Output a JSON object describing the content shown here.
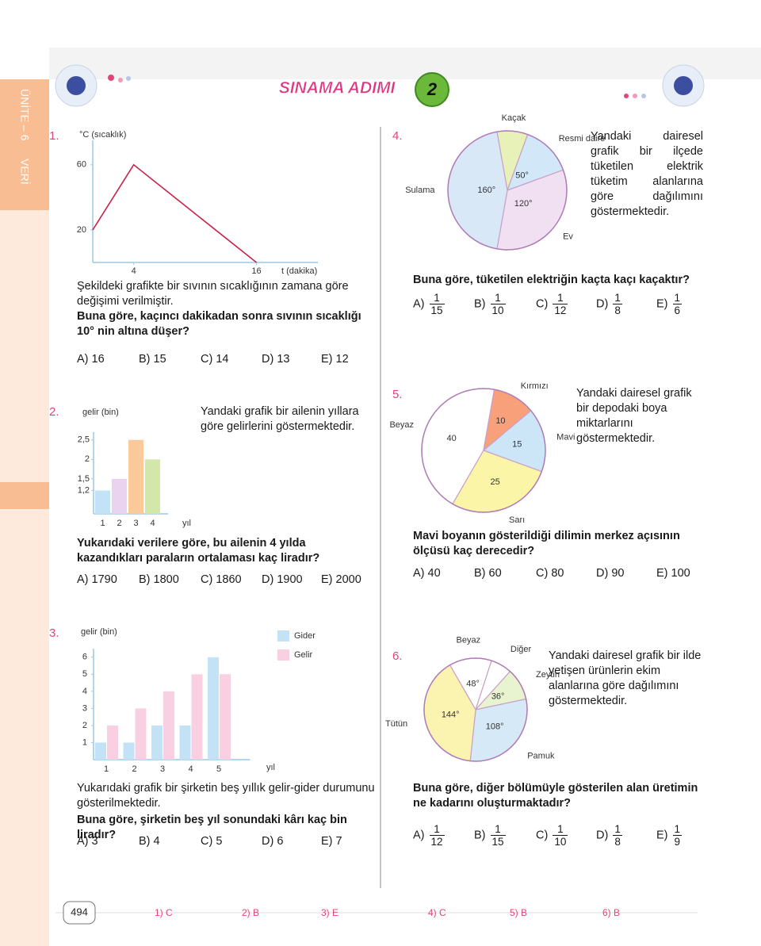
{
  "header": {
    "unit": "ÜNİTE – 6",
    "topic": "VERİ",
    "title": "SINAMA ADIMI",
    "step": "2"
  },
  "questions": [
    {
      "number": "1.",
      "chart_data": {
        "type": "line",
        "y_label": "°C (sıcaklık)",
        "x_label": "t (dakika)",
        "x": [
          0,
          4,
          16
        ],
        "values": [
          20,
          60,
          0
        ],
        "color": "#c8234b",
        "xlim": [
          0,
          22
        ],
        "ylim": [
          0,
          75
        ],
        "xticks": [
          4,
          16
        ],
        "yticks": [
          20,
          60
        ]
      },
      "text": "Şekildeki grafikte bir sıvının sıcaklığının zamana göre değişimi verilmiştir.",
      "question": "Buna göre, kaçıncı dakikadan sonra sıvının sıcaklığı 10° nin altına düşer?",
      "options": [
        "A) 16",
        "B) 15",
        "C) 14",
        "D) 13",
        "E) 12"
      ]
    },
    {
      "number": "2.",
      "chart_data": {
        "type": "bar",
        "y_label": "gelir (bin)",
        "x_label": "yıl",
        "categories": [
          "1",
          "2",
          "3",
          "4"
        ],
        "values": [
          1.2,
          1.5,
          2.5,
          2
        ],
        "colors": [
          "#c4e2f6",
          "#e9d3ee",
          "#fcc99a",
          "#d3e8a8"
        ],
        "ylim": [
          0.6,
          2.7
        ],
        "yticks": [
          {
            "value": 1.2,
            "label": "1,2"
          },
          {
            "value": 1.5,
            "label": "1,5"
          },
          2,
          {
            "value": 2.5,
            "label": "2,5"
          }
        ]
      },
      "text": "Yandaki grafik bir ailenin yıllara göre gelirlerini göstermektedir.",
      "question": "Yukarıdaki verilere göre, bu ailenin 4 yılda kazandıkları paraların ortalaması kaç liradır?",
      "options": [
        "A) 1790",
        "B) 1800",
        "C) 1860",
        "D) 1900",
        "E) 2000"
      ]
    },
    {
      "number": "3.",
      "chart_data": {
        "type": "grouped-bar",
        "y_label": "gelir (bin)",
        "x_label": "yıl",
        "categories": [
          "1",
          "2",
          "3",
          "4",
          "5"
        ],
        "series": [
          {
            "name": "Gider",
            "color": "#c4e2f6",
            "values": [
              1,
              1,
              2,
              2,
              6
            ]
          },
          {
            "name": "Gelir",
            "color": "#f9d0e2",
            "values": [
              2,
              3,
              4,
              5,
              5
            ]
          }
        ],
        "ylim": [
          0,
          6.5
        ],
        "yticks": [
          1,
          2,
          3,
          4,
          5,
          6
        ]
      },
      "text": "Yukarıdaki grafik bir şirketin beş yıllık gelir-gider durumunu gösterilmektedir.",
      "question": "Buna göre, şirketin beş yıl sonundaki kârı kaç bin liradır?",
      "options": [
        "A) 3",
        "B) 4",
        "C) 5",
        "D) 6",
        "E) 7"
      ]
    },
    {
      "number": "4.",
      "chart_data": {
        "type": "pie",
        "categories": [
          "Kaçak",
          "Resmi daire",
          "Ev",
          "Sulama"
        ],
        "values": [
          30,
          50,
          120,
          160
        ],
        "value_labels": [
          null,
          "50°",
          "120°",
          "160°"
        ],
        "colors": [
          "#e8f2b8",
          "#d2e7f7",
          "#f1e0f1",
          "#d9e8f7"
        ]
      },
      "text": "Yandaki dairesel grafik bir ilçede tüketilen elektrik tüketim alanlarına göre dağılımını göstermektedir.",
      "question": "Buna göre, tüketilen elektriğin kaçta kaçı kaçaktır?",
      "options": [
        {
          "letter": "A)",
          "num": "1",
          "den": "15"
        },
        {
          "letter": "B)",
          "num": "1",
          "den": "10"
        },
        {
          "letter": "C)",
          "num": "1",
          "den": "12"
        },
        {
          "letter": "D)",
          "num": "1",
          "den": "8"
        },
        {
          "letter": "E)",
          "num": "1",
          "den": "6"
        }
      ]
    },
    {
      "number": "5.",
      "chart_data": {
        "type": "pie",
        "categories": [
          "Beyaz",
          "Kırmızı",
          "Mavi",
          "Sarı"
        ],
        "values": [
          40,
          10,
          15,
          25
        ],
        "colors": [
          "#ffffff",
          "#f7a07a",
          "#cde6f7",
          "#fbf5a8"
        ]
      },
      "text": "Yandaki dairesel grafik bir depodaki boya miktarlarını göstermektedir.",
      "question": "Mavi boyanın gösterildiği dilimin merkez açısının ölçüsü kaç derecedir?",
      "options": [
        "A) 40",
        "B) 60",
        "C) 80",
        "D) 90",
        "E) 100"
      ]
    },
    {
      "number": "6.",
      "chart_data": {
        "type": "pie",
        "categories": [
          "Beyaz",
          "Diğer",
          "Zeytin",
          "Pamuk",
          "Tütün"
        ],
        "values": [
          48,
          24,
          36,
          108,
          144
        ],
        "value_labels": [
          "48°",
          null,
          "36°",
          "108°",
          "144°"
        ],
        "colors": [
          "#ffffff",
          "#ffffff",
          "#e8f3d0",
          "#d5e9f7",
          "#fbf4b0"
        ]
      },
      "text": "Yandaki dairesel grafik bir ilde yetişen ürünlerin ekim alanlarına göre dağılımını göstermektedir.",
      "question": "Buna göre, diğer bölümüyle gösterilen alan üretimin ne kadarını oluşturmaktadır?",
      "options": [
        {
          "letter": "A)",
          "num": "1",
          "den": "12"
        },
        {
          "letter": "B)",
          "num": "1",
          "den": "15"
        },
        {
          "letter": "C)",
          "num": "1",
          "den": "10"
        },
        {
          "letter": "D)",
          "num": "1",
          "den": "8"
        },
        {
          "letter": "E)",
          "num": "1",
          "den": "9"
        }
      ]
    }
  ],
  "footer": {
    "page": "494",
    "answers": [
      "1) C",
      "2) B",
      "3) E",
      "4) C",
      "5) B",
      "6) B"
    ]
  }
}
